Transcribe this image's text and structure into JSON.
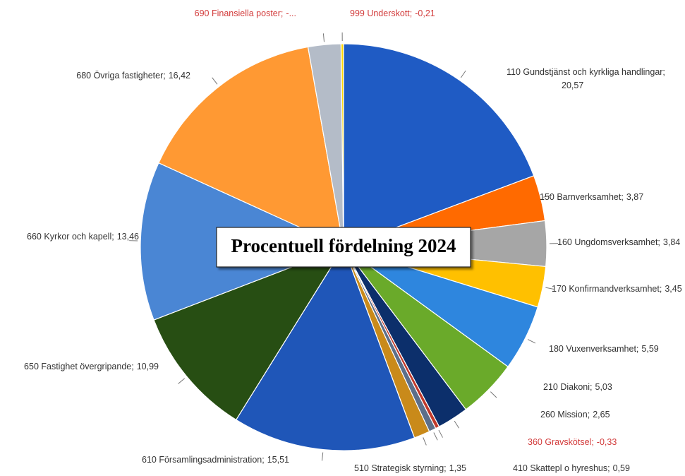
{
  "chart_data": {
    "type": "pie",
    "title": "Procentuell fördelning 2024",
    "categories": [
      "110 Gundstjänst och kyrkliga handlingar;",
      "150 Barnverksamhet;",
      "160 Ungdomsverksamhet;",
      "170 Konfirmandverksamhet;",
      "180 Vuxenverksamhet;",
      "210 Diakoni;",
      "260 Mission;",
      "360 Gravskötsel;",
      "410 Skattepl o hyreshus;",
      "510 Strategisk styrning;",
      "610 Församlingsadministration;",
      "650 Fastighet övergripande;",
      "660 Kyrkor och kapell;",
      "680 Övriga fastigheter;",
      "690 Finansiella poster;",
      "999 Underskott;"
    ],
    "values": [
      20.57,
      3.87,
      3.84,
      3.45,
      5.59,
      5.03,
      2.65,
      -0.33,
      0.59,
      1.35,
      15.51,
      10.99,
      13.46,
      16.42,
      -2.78,
      -0.21
    ],
    "value_labels": [
      "20,57",
      "3,87",
      "3,84",
      "3,45",
      "5,59",
      "5,03",
      "2,65",
      "-0,33",
      "0,59",
      "1,35",
      "15,51",
      "10,99",
      "13,46",
      "16,42",
      "-...",
      "-0,21"
    ],
    "colors": [
      "#1f5bc4",
      "#ff6a00",
      "#a6a6a6",
      "#ffc000",
      "#2e86de",
      "#6aaa2a",
      "#0c2f6b",
      "#c0392b",
      "#5c6f8a",
      "#c98a1a",
      "#1f56b8",
      "#274e13",
      "#4a86d4",
      "#ff9933",
      "#b4bcc8",
      "#ffd800"
    ]
  }
}
